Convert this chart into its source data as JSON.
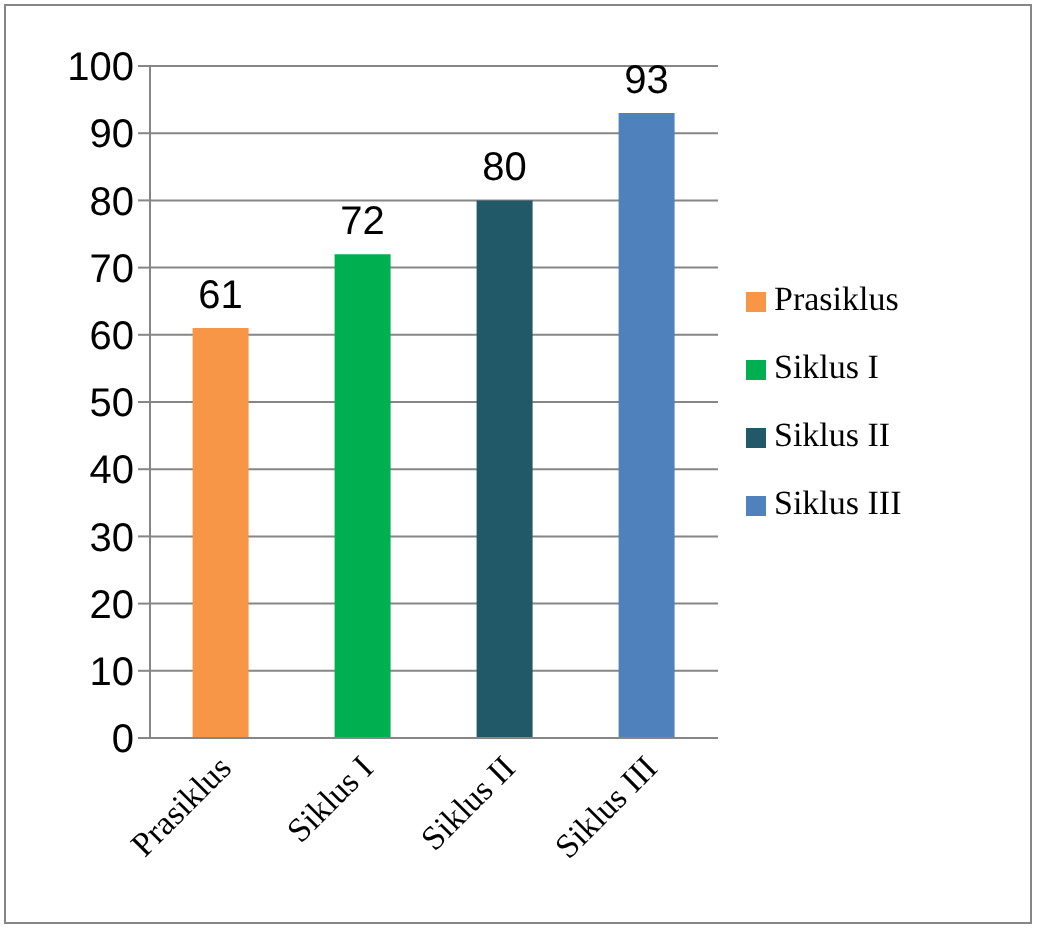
{
  "chart_data": {
    "type": "bar",
    "categories": [
      "Prasiklus",
      "Siklus I",
      "Siklus II",
      "Siklus III"
    ],
    "series": [
      {
        "name": "Prasiklus",
        "color": "#f79646",
        "values": [
          61,
          null,
          null,
          null
        ]
      },
      {
        "name": "Siklus I",
        "color": "#00b050",
        "values": [
          null,
          72,
          null,
          null
        ]
      },
      {
        "name": "Siklus II",
        "color": "#215968",
        "values": [
          null,
          null,
          80,
          null
        ]
      },
      {
        "name": "Siklus III",
        "color": "#4f81bd",
        "values": [
          null,
          null,
          null,
          93
        ]
      }
    ],
    "ylim": [
      0,
      100
    ],
    "yticks": [
      0,
      10,
      20,
      30,
      40,
      50,
      60,
      70,
      80,
      90,
      100
    ],
    "grid": "y",
    "legend": "right",
    "data_labels": true
  }
}
